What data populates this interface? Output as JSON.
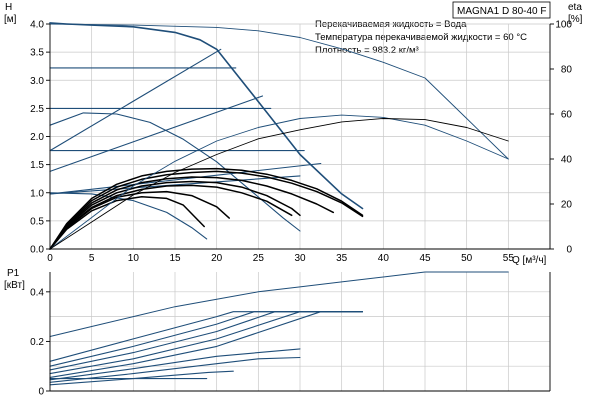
{
  "chart_data": [
    {
      "type": "line",
      "title": "MAGNA1 D 80-40 F",
      "notes": [
        "Перекачиваемая жидкость = Вода",
        "Температура перекачиваемой жидкости = 60 °C",
        "Плотность = 983.2 кг/м³"
      ],
      "ylabel_top": "H",
      "ylabel_unit": "[м]",
      "y2label_top": "eta",
      "y2label_unit": "[%]",
      "xlabel": "Q [м³/ч]",
      "xlim": [
        0,
        60
      ],
      "ylim": [
        0,
        4.0
      ],
      "y2lim": [
        0,
        100
      ],
      "x_ticks": [
        "0",
        "5",
        "10",
        "15",
        "20",
        "25",
        "30",
        "35",
        "40",
        "45",
        "50",
        "55"
      ],
      "y_ticks": [
        "0.0",
        "0.5",
        "1.0",
        "1.5",
        "2.0",
        "2.5",
        "3.0",
        "3.5",
        "4.0"
      ],
      "y2_ticks": [
        "0",
        "20",
        "40",
        "60",
        "80",
        "100"
      ],
      "grid": true,
      "series": [
        {
          "role": "max-head",
          "color": "#1f4e79",
          "x": [
            0,
            2,
            5,
            10,
            15,
            18,
            20,
            25,
            30,
            35,
            37.5
          ],
          "y": [
            4.02,
            4.0,
            3.98,
            3.95,
            3.85,
            3.72,
            3.55,
            2.62,
            1.68,
            0.98,
            0.72
          ]
        },
        {
          "role": "step-line",
          "color": "#1f4e79",
          "x": [
            0,
            22.3
          ],
          "y": [
            3.22,
            3.22
          ]
        },
        {
          "role": "step-line",
          "color": "#1f4e79",
          "x": [
            0,
            26.5
          ],
          "y": [
            2.5,
            2.5
          ]
        },
        {
          "role": "step-line",
          "color": "#1f4e79",
          "x": [
            0,
            30.5
          ],
          "y": [
            1.75,
            1.75
          ]
        },
        {
          "role": "proportional-line",
          "color": "#1f4e79",
          "x": [
            0,
            20.5
          ],
          "y": [
            1.75,
            3.55
          ]
        },
        {
          "role": "proportional-line",
          "color": "#1f4e79",
          "x": [
            0,
            25.5
          ],
          "y": [
            1.38,
            2.72
          ]
        },
        {
          "role": "proportional-line",
          "color": "#1f4e79",
          "x": [
            0,
            32.5
          ],
          "y": [
            0.98,
            1.52
          ]
        },
        {
          "role": "proportional-line",
          "color": "#1f4e79",
          "x": [
            0,
            30
          ],
          "y": [
            0.98,
            1.3
          ]
        },
        {
          "role": "curve",
          "color": "#1f4e79",
          "x": [
            0,
            4,
            8,
            12,
            16,
            20,
            24,
            28,
            30
          ],
          "y": [
            2.2,
            2.42,
            2.4,
            2.25,
            1.95,
            1.55,
            1.05,
            0.55,
            0.32
          ]
        },
        {
          "role": "curve",
          "color": "#1f4e79",
          "x": [
            0,
            5,
            10,
            14,
            17,
            18.8
          ],
          "y": [
            1.0,
            0.98,
            0.86,
            0.65,
            0.38,
            0.18
          ]
        },
        {
          "role": "curve",
          "color": "#000000",
          "x": [
            0,
            2,
            5,
            8,
            11,
            14,
            17,
            20,
            23,
            26,
            29,
            32,
            35,
            37.5
          ],
          "y": [
            0,
            0.45,
            0.9,
            1.15,
            1.3,
            1.38,
            1.42,
            1.43,
            1.4,
            1.33,
            1.22,
            1.07,
            0.85,
            0.6
          ]
        },
        {
          "role": "curve",
          "color": "#000000",
          "x": [
            0,
            2,
            5,
            8,
            11,
            14,
            17,
            20,
            23,
            26,
            29,
            32,
            35,
            37.5
          ],
          "y": [
            0,
            0.43,
            0.86,
            1.1,
            1.24,
            1.32,
            1.36,
            1.38,
            1.35,
            1.28,
            1.17,
            1.02,
            0.82,
            0.58
          ]
        },
        {
          "role": "curve",
          "color": "#000000",
          "x": [
            0,
            2,
            5,
            8,
            11,
            14,
            17,
            20,
            23,
            26,
            29,
            32,
            34
          ],
          "y": [
            0,
            0.42,
            0.82,
            1.05,
            1.18,
            1.25,
            1.28,
            1.27,
            1.22,
            1.12,
            0.98,
            0.8,
            0.65
          ]
        },
        {
          "role": "curve",
          "color": "#000000",
          "x": [
            0,
            2,
            5,
            8,
            11,
            14,
            17,
            20,
            23,
            26,
            29,
            30
          ],
          "y": [
            0,
            0.4,
            0.78,
            1.0,
            1.12,
            1.18,
            1.2,
            1.18,
            1.1,
            0.95,
            0.72,
            0.6
          ]
        },
        {
          "role": "curve",
          "color": "#000000",
          "x": [
            0,
            2,
            5,
            8,
            11,
            14,
            17,
            20,
            23,
            26,
            29
          ],
          "y": [
            0,
            0.38,
            0.74,
            0.95,
            1.06,
            1.12,
            1.13,
            1.1,
            1.0,
            0.85,
            0.6
          ]
        },
        {
          "role": "curve",
          "color": "#000000",
          "x": [
            0,
            2,
            5,
            8,
            11,
            14,
            17,
            20,
            21.5
          ],
          "y": [
            0,
            0.37,
            0.72,
            0.92,
            1.0,
            1.02,
            0.95,
            0.75,
            0.55
          ]
        },
        {
          "role": "curve",
          "color": "#000000",
          "x": [
            0,
            2,
            5,
            8,
            11,
            14,
            16,
            18.5
          ],
          "y": [
            0,
            0.35,
            0.68,
            0.86,
            0.93,
            0.9,
            0.78,
            0.4
          ]
        },
        {
          "role": "efficiency",
          "color": "#1f4e79",
          "x": [
            0,
            5,
            10,
            15,
            20,
            25,
            30,
            35,
            40,
            45,
            50,
            55
          ],
          "y": [
            0,
            14,
            28,
            39,
            48,
            54,
            58,
            59.5,
            58.5,
            55,
            48,
            40
          ]
        },
        {
          "role": "efficiency-max",
          "color": "#1f4e79",
          "x": [
            0,
            10,
            20,
            25,
            30,
            35,
            40,
            45,
            50,
            55
          ],
          "y": [
            100,
            99.5,
            98.5,
            97,
            94,
            89,
            83,
            76,
            58,
            40
          ]
        },
        {
          "role": "efficiency-part",
          "color": "#000000",
          "x": [
            0,
            5,
            10,
            15,
            20,
            25,
            30,
            35,
            40,
            45,
            50,
            55
          ],
          "y": [
            0,
            12,
            24,
            34,
            42,
            49,
            53,
            56.5,
            58,
            57.5,
            54,
            48
          ]
        }
      ]
    },
    {
      "type": "line",
      "ylabel_top": "P1",
      "ylabel_unit": "[кВт]",
      "xlim": [
        0,
        60
      ],
      "ylim": [
        0,
        0.48
      ],
      "y_ticks": [
        "0",
        "0.2",
        "0.4"
      ],
      "grid": true,
      "series": [
        {
          "role": "power-max",
          "color": "#1f4e79",
          "x": [
            0,
            5,
            10,
            15,
            20,
            25,
            30,
            35,
            40,
            45,
            55
          ],
          "y": [
            0.22,
            0.26,
            0.3,
            0.34,
            0.37,
            0.4,
            0.42,
            0.44,
            0.46,
            0.48,
            0.48
          ]
        },
        {
          "role": "power",
          "color": "#1f4e79",
          "x": [
            0,
            10,
            20,
            22,
            37.5
          ],
          "y": [
            0.12,
            0.21,
            0.3,
            0.32,
            0.32
          ]
        },
        {
          "role": "power",
          "color": "#1f4e79",
          "x": [
            0,
            10,
            20,
            24.5,
            37.5
          ],
          "y": [
            0.1,
            0.18,
            0.27,
            0.32,
            0.32
          ]
        },
        {
          "role": "power",
          "color": "#1f4e79",
          "x": [
            0,
            10,
            20,
            27,
            37.5
          ],
          "y": [
            0.085,
            0.155,
            0.24,
            0.32,
            0.32
          ]
        },
        {
          "role": "power",
          "color": "#1f4e79",
          "x": [
            0,
            10,
            20,
            30,
            37.5
          ],
          "y": [
            0.07,
            0.13,
            0.21,
            0.32,
            0.32
          ]
        },
        {
          "role": "power",
          "color": "#1f4e79",
          "x": [
            0,
            10,
            20,
            32.5,
            37.5
          ],
          "y": [
            0.055,
            0.11,
            0.18,
            0.32,
            0.32
          ]
        },
        {
          "role": "power",
          "color": "#1f4e79",
          "x": [
            0,
            10,
            20,
            30
          ],
          "y": [
            0.045,
            0.09,
            0.14,
            0.17
          ]
        },
        {
          "role": "power",
          "color": "#1f4e79",
          "x": [
            0,
            10,
            20,
            25,
            30
          ],
          "y": [
            0.035,
            0.07,
            0.11,
            0.13,
            0.135
          ]
        },
        {
          "role": "power",
          "color": "#1f4e79",
          "x": [
            0,
            10,
            19,
            22
          ],
          "y": [
            0.025,
            0.05,
            0.075,
            0.08
          ]
        },
        {
          "role": "power",
          "color": "#1f4e79",
          "x": [
            0,
            10,
            18.8
          ],
          "y": [
            0.05,
            0.05,
            0.05
          ]
        }
      ]
    }
  ]
}
